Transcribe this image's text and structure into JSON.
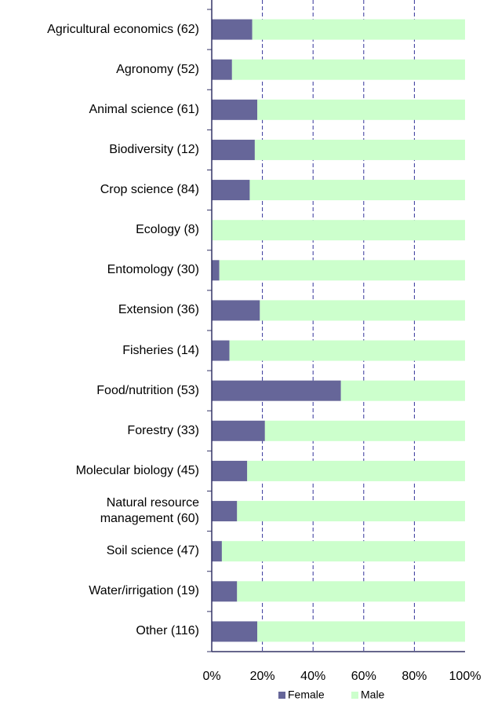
{
  "chart_data": {
    "type": "stacked-barh",
    "categories": [
      "Agricultural economics (62)",
      "Agronomy (52)",
      "Animal science (61)",
      "Biodiversity (12)",
      "Crop science (84)",
      "Ecology (8)",
      "Entomology (30)",
      "Extension (36)",
      "Fisheries (14)",
      "Food/nutrition (53)",
      "Forestry (33)",
      "Molecular biology (45)",
      "Natural resource\nmanagement (60)",
      "Soil science (47)",
      "Water/irrigation (19)",
      "Other (116)"
    ],
    "series": [
      {
        "name": "Female",
        "color": "#666699",
        "values": [
          16,
          8,
          18,
          17,
          15,
          0,
          3,
          19,
          7,
          51,
          21,
          14,
          10,
          4,
          10,
          18
        ]
      },
      {
        "name": "Male",
        "color": "#ccffcc",
        "values": [
          84,
          92,
          82,
          83,
          85,
          100,
          97,
          81,
          93,
          49,
          79,
          86,
          90,
          96,
          90,
          82
        ]
      }
    ],
    "xlim": [
      0,
      100
    ],
    "xticks": [
      {
        "value": 0,
        "label": "0%"
      },
      {
        "value": 20,
        "label": "20%"
      },
      {
        "value": 40,
        "label": "40%"
      },
      {
        "value": 60,
        "label": "60%"
      },
      {
        "value": 80,
        "label": "80%"
      },
      {
        "value": 100,
        "label": "100%"
      }
    ],
    "grid": true,
    "legend": "bottom"
  }
}
